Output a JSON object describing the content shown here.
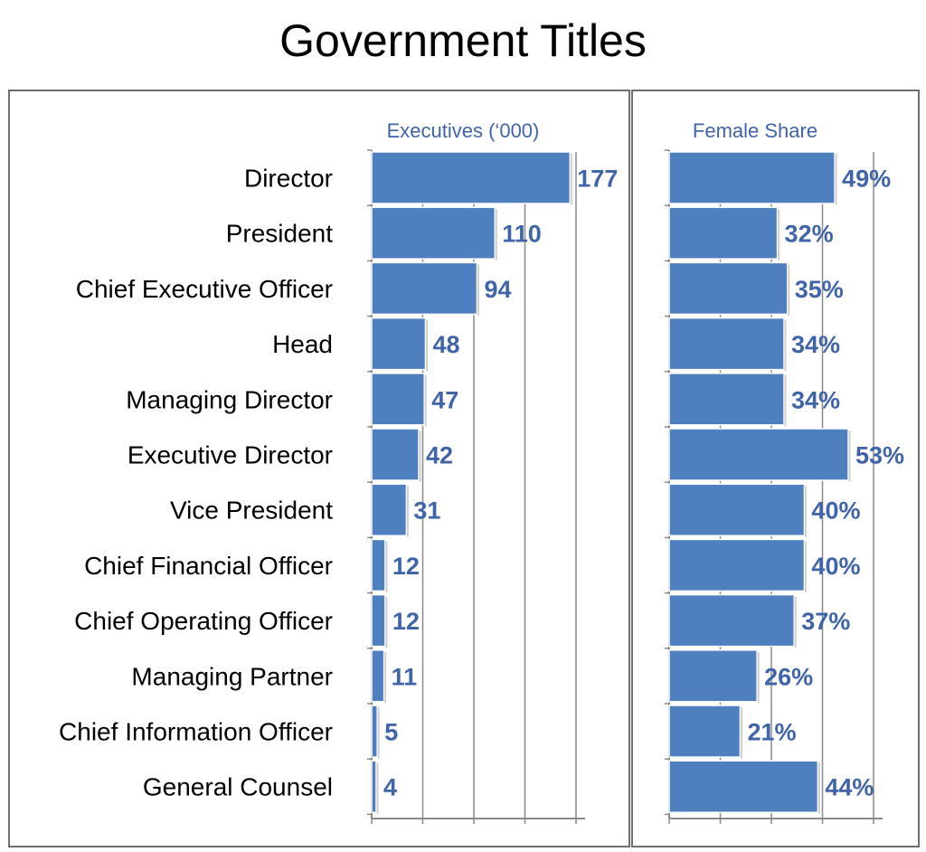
{
  "chart_data": {
    "type": "bar",
    "title": "Government Titles",
    "categories": [
      "Director",
      "President",
      "Chief Executive Officer",
      "Head",
      "Managing Director",
      "Executive Director",
      "Vice President",
      "Chief Financial Officer",
      "Chief Operating Officer",
      "Managing Partner",
      "Chief Information Officer",
      "General Counsel"
    ],
    "panels": [
      {
        "name": "Executives ('000)",
        "header": "Executives (‘000)",
        "values": [
          177,
          110,
          94,
          48,
          47,
          42,
          31,
          12,
          12,
          11,
          5,
          4
        ],
        "value_labels": [
          "177",
          "110",
          "94",
          "48",
          "47",
          "42",
          "31",
          "12",
          "12",
          "11",
          "5",
          "4"
        ],
        "xlim": [
          0,
          180
        ]
      },
      {
        "name": "Female Share",
        "header": "Female Share",
        "values": [
          49,
          32,
          35,
          34,
          34,
          53,
          40,
          40,
          37,
          26,
          21,
          44
        ],
        "value_labels": [
          "49%",
          "32%",
          "35%",
          "34%",
          "34%",
          "53%",
          "40%",
          "40%",
          "37%",
          "26%",
          "21%",
          "44%"
        ],
        "xlim": [
          0,
          53
        ]
      }
    ],
    "colors": {
      "bar": "#4e7fbe",
      "label": "#3f64a8",
      "grid": "#8a8a8a",
      "frame": "#6f6f6f"
    },
    "grid": true,
    "legend": "none"
  }
}
